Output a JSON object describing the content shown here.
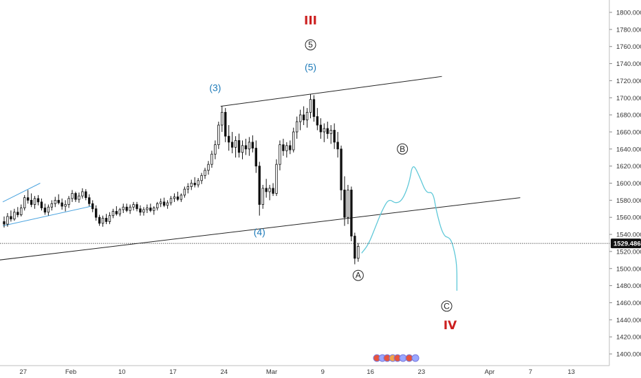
{
  "chart_data": {
    "type": "candlestick",
    "y_axis": {
      "ticks": [
        1400,
        1420,
        1440,
        1460,
        1480,
        1500,
        1520,
        1540,
        1560,
        1580,
        1600,
        1620,
        1640,
        1660,
        1680,
        1700,
        1720,
        1740,
        1760,
        1780,
        1800
      ],
      "tick_labels": [
        "1400.000",
        "1420.000",
        "1440.000",
        "1460.000",
        "1480.000",
        "1500.000",
        "1520.000",
        "1540.000",
        "1560.000",
        "1580.000",
        "1600.000",
        "1620.000",
        "1640.000",
        "1660.000",
        "1680.000",
        "1700.000",
        "1720.000",
        "1740.000",
        "1760.000",
        "1780.000",
        "1800.000"
      ],
      "range": [
        1390,
        1812
      ]
    },
    "x_axis": {
      "tick_labels": [
        "27",
        "Feb",
        "10",
        "17",
        "24",
        "Mar",
        "9",
        "16",
        "23",
        "Apr",
        "7",
        "13"
      ]
    },
    "current_price": 1529.486,
    "current_price_label": "1529.486",
    "candles": [
      [
        1555,
        1561,
        1548,
        1552
      ],
      [
        1552,
        1565,
        1549,
        1561
      ],
      [
        1561,
        1568,
        1555,
        1558
      ],
      [
        1558,
        1570,
        1556,
        1566
      ],
      [
        1566,
        1572,
        1560,
        1563
      ],
      [
        1563,
        1575,
        1561,
        1571
      ],
      [
        1571,
        1586,
        1568,
        1583
      ],
      [
        1583,
        1592,
        1576,
        1580
      ],
      [
        1580,
        1588,
        1572,
        1575
      ],
      [
        1575,
        1585,
        1570,
        1582
      ],
      [
        1582,
        1586,
        1574,
        1578
      ],
      [
        1578,
        1582,
        1568,
        1571
      ],
      [
        1571,
        1576,
        1563,
        1566
      ],
      [
        1566,
        1575,
        1562,
        1572
      ],
      [
        1572,
        1580,
        1568,
        1576
      ],
      [
        1576,
        1584,
        1572,
        1580
      ],
      [
        1580,
        1587,
        1575,
        1577
      ],
      [
        1577,
        1582,
        1569,
        1573
      ],
      [
        1573,
        1580,
        1567,
        1575
      ],
      [
        1575,
        1585,
        1571,
        1582
      ],
      [
        1582,
        1592,
        1578,
        1588
      ],
      [
        1588,
        1590,
        1578,
        1581
      ],
      [
        1581,
        1589,
        1577,
        1585
      ],
      [
        1585,
        1594,
        1582,
        1590
      ],
      [
        1590,
        1593,
        1580,
        1583
      ],
      [
        1583,
        1587,
        1573,
        1576
      ],
      [
        1576,
        1580,
        1566,
        1570
      ],
      [
        1570,
        1574,
        1556,
        1560
      ],
      [
        1560,
        1563,
        1550,
        1553
      ],
      [
        1553,
        1562,
        1549,
        1559
      ],
      [
        1559,
        1564,
        1552,
        1555
      ],
      [
        1555,
        1566,
        1552,
        1562
      ],
      [
        1562,
        1570,
        1559,
        1567
      ],
      [
        1567,
        1573,
        1562,
        1564
      ],
      [
        1564,
        1571,
        1561,
        1569
      ],
      [
        1569,
        1576,
        1565,
        1572
      ],
      [
        1572,
        1576,
        1566,
        1568
      ],
      [
        1568,
        1575,
        1564,
        1572
      ],
      [
        1572,
        1578,
        1568,
        1575
      ],
      [
        1575,
        1578,
        1567,
        1570
      ],
      [
        1570,
        1574,
        1562,
        1566
      ],
      [
        1566,
        1572,
        1562,
        1569
      ],
      [
        1569,
        1575,
        1565,
        1571
      ],
      [
        1571,
        1576,
        1566,
        1568
      ],
      [
        1568,
        1573,
        1563,
        1571
      ],
      [
        1571,
        1578,
        1568,
        1576
      ],
      [
        1576,
        1582,
        1572,
        1578
      ],
      [
        1578,
        1583,
        1572,
        1574
      ],
      [
        1574,
        1580,
        1570,
        1577
      ],
      [
        1577,
        1585,
        1574,
        1582
      ],
      [
        1582,
        1588,
        1578,
        1584
      ],
      [
        1584,
        1590,
        1579,
        1581
      ],
      [
        1581,
        1588,
        1578,
        1586
      ],
      [
        1586,
        1596,
        1583,
        1593
      ],
      [
        1593,
        1600,
        1588,
        1596
      ],
      [
        1596,
        1604,
        1592,
        1600
      ],
      [
        1600,
        1607,
        1595,
        1598
      ],
      [
        1598,
        1606,
        1595,
        1603
      ],
      [
        1603,
        1612,
        1599,
        1609
      ],
      [
        1609,
        1618,
        1605,
        1615
      ],
      [
        1615,
        1626,
        1610,
        1622
      ],
      [
        1622,
        1638,
        1618,
        1634
      ],
      [
        1634,
        1650,
        1628,
        1645
      ],
      [
        1645,
        1672,
        1640,
        1668
      ],
      [
        1668,
        1690,
        1660,
        1683
      ],
      [
        1683,
        1688,
        1648,
        1655
      ],
      [
        1655,
        1668,
        1638,
        1648
      ],
      [
        1648,
        1660,
        1635,
        1642
      ],
      [
        1642,
        1655,
        1630,
        1650
      ],
      [
        1650,
        1658,
        1630,
        1636
      ],
      [
        1636,
        1650,
        1628,
        1644
      ],
      [
        1644,
        1652,
        1633,
        1640
      ],
      [
        1640,
        1654,
        1632,
        1648
      ],
      [
        1648,
        1656,
        1636,
        1641
      ],
      [
        1641,
        1650,
        1612,
        1620
      ],
      [
        1620,
        1625,
        1562,
        1575
      ],
      [
        1575,
        1598,
        1570,
        1594
      ],
      [
        1594,
        1605,
        1583,
        1590
      ],
      [
        1590,
        1598,
        1580,
        1594
      ],
      [
        1594,
        1600,
        1585,
        1588
      ],
      [
        1588,
        1628,
        1585,
        1622
      ],
      [
        1622,
        1650,
        1615,
        1645
      ],
      [
        1645,
        1652,
        1632,
        1638
      ],
      [
        1638,
        1648,
        1630,
        1644
      ],
      [
        1644,
        1650,
        1634,
        1639
      ],
      [
        1639,
        1665,
        1636,
        1660
      ],
      [
        1660,
        1678,
        1652,
        1672
      ],
      [
        1672,
        1686,
        1662,
        1680
      ],
      [
        1680,
        1690,
        1668,
        1674
      ],
      [
        1674,
        1688,
        1665,
        1683
      ],
      [
        1683,
        1704,
        1676,
        1698
      ],
      [
        1698,
        1703,
        1672,
        1678
      ],
      [
        1678,
        1688,
        1662,
        1668
      ],
      [
        1668,
        1676,
        1652,
        1660
      ],
      [
        1660,
        1670,
        1648,
        1664
      ],
      [
        1664,
        1672,
        1652,
        1658
      ],
      [
        1658,
        1668,
        1646,
        1662
      ],
      [
        1662,
        1670,
        1640,
        1648
      ],
      [
        1648,
        1660,
        1630,
        1640
      ],
      [
        1640,
        1644,
        1580,
        1592
      ],
      [
        1592,
        1608,
        1550,
        1560
      ],
      [
        1560,
        1598,
        1552,
        1592
      ],
      [
        1592,
        1596,
        1532,
        1538
      ],
      [
        1538,
        1542,
        1505,
        1512
      ],
      [
        1512,
        1530,
        1508,
        1526
      ]
    ],
    "trendlines": [
      {
        "name": "upper-channel",
        "from": [
          64,
          1690
        ],
        "to": [
          129,
          1725
        ]
      },
      {
        "name": "lower-channel",
        "from": [
          -22,
          1500
        ],
        "to": [
          152,
          1583
        ]
      },
      {
        "name": "small-channel-upper",
        "from": [
          0,
          1578
        ],
        "to": [
          11,
          1600
        ]
      },
      {
        "name": "small-channel-lower",
        "from": [
          0,
          1550
        ],
        "to": [
          26,
          1573
        ]
      }
    ],
    "projection": [
      [
        105,
        1518
      ],
      [
        107,
        1528
      ],
      [
        109,
        1548
      ],
      [
        111,
        1568
      ],
      [
        113,
        1582
      ],
      [
        115,
        1576
      ],
      [
        117,
        1580
      ],
      [
        119,
        1600
      ],
      [
        120,
        1624
      ],
      [
        122,
        1608
      ],
      [
        124,
        1588
      ],
      [
        126,
        1590
      ],
      [
        127,
        1566
      ],
      [
        129,
        1538
      ],
      [
        131,
        1536
      ],
      [
        132,
        1525
      ],
      [
        133,
        1505
      ],
      [
        133,
        1474
      ]
    ],
    "labels": [
      {
        "text": "III",
        "style": "roman",
        "color": "#cc1f1f",
        "at": [
          90,
          1790
        ]
      },
      {
        "text": "5",
        "style": "circle",
        "color": "#222222",
        "at": [
          90,
          1762
        ]
      },
      {
        "text": "(5)",
        "style": "paren",
        "color": "#1c7ab9",
        "at": [
          90,
          1736
        ]
      },
      {
        "text": "(3)",
        "style": "paren",
        "color": "#1c7ab9",
        "at": [
          62,
          1712
        ]
      },
      {
        "text": "(4)",
        "style": "paren",
        "color": "#1c7ab9",
        "at": [
          75,
          1543
        ]
      },
      {
        "text": "A",
        "style": "circle",
        "color": "#222222",
        "at": [
          104,
          1492
        ]
      },
      {
        "text": "B",
        "style": "circle",
        "color": "#222222",
        "at": [
          117,
          1640
        ]
      },
      {
        "text": "C",
        "style": "circle",
        "color": "#222222",
        "at": [
          130,
          1456
        ]
      },
      {
        "text": "IV",
        "style": "roman",
        "color": "#cc1f1f",
        "at": [
          131,
          1433
        ]
      }
    ],
    "colors": {
      "candle": "#111111",
      "trendline": "#222222",
      "small_channel": "#4aa3df",
      "projection": "#5ec8d8",
      "price_tag": "#111111",
      "axis": "#bcbcbc"
    }
  }
}
